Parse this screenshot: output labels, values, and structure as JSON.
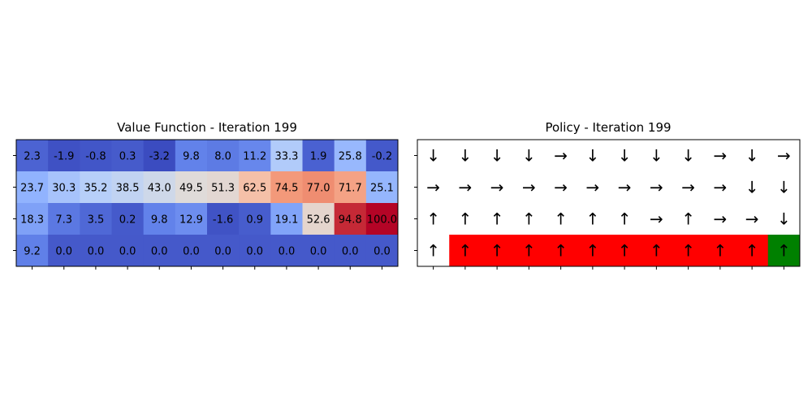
{
  "value_panel": {
    "title": "Value Function - Iteration 199"
  },
  "policy_panel": {
    "title": "Policy - Iteration 199"
  },
  "chart_data": [
    {
      "type": "heatmap",
      "title": "Value Function - Iteration 199",
      "colormap": "coolwarm",
      "rows": 4,
      "cols": 12,
      "values": [
        [
          2.3,
          -1.9,
          -0.8,
          0.3,
          -3.2,
          9.8,
          8.0,
          11.2,
          33.3,
          1.9,
          25.8,
          -0.2
        ],
        [
          23.7,
          30.3,
          35.2,
          38.5,
          43.0,
          49.5,
          51.3,
          62.5,
          74.5,
          77.0,
          71.7,
          25.1
        ],
        [
          18.3,
          7.3,
          3.5,
          0.2,
          9.8,
          12.9,
          -1.6,
          0.9,
          19.1,
          52.6,
          94.8,
          100.0
        ],
        [
          9.2,
          0.0,
          0.0,
          0.0,
          0.0,
          0.0,
          0.0,
          0.0,
          0.0,
          0.0,
          0.0,
          0.0
        ]
      ],
      "labels": [
        [
          "2.3",
          "-1.9",
          "-0.8",
          "0.3",
          "-3.2",
          "9.8",
          "8.0",
          "11.2",
          "33.3",
          "1.9",
          "25.8",
          "-0.2"
        ],
        [
          "23.7",
          "30.3",
          "35.2",
          "38.5",
          "43.0",
          "49.5",
          "51.3",
          "62.5",
          "74.5",
          "77.0",
          "71.7",
          "25.1"
        ],
        [
          "18.3",
          "7.3",
          "3.5",
          "0.2",
          "9.8",
          "12.9",
          "-1.6",
          "0.9",
          "19.1",
          "52.6",
          "94.8",
          "100.0"
        ],
        [
          "9.2",
          "0.0",
          "0.0",
          "0.0",
          "0.0",
          "0.0",
          "0.0",
          "0.0",
          "0.0",
          "0.0",
          "0.0",
          "0.0"
        ]
      ],
      "vmin": -3.2,
      "vmax": 100.0
    },
    {
      "type": "table",
      "title": "Policy - Iteration 199",
      "rows": 4,
      "cols": 12,
      "arrows": [
        [
          "↓",
          "↓",
          "↓",
          "↓",
          "→",
          "↓",
          "↓",
          "↓",
          "↓",
          "→",
          "↓",
          "→"
        ],
        [
          "→",
          "→",
          "→",
          "→",
          "→",
          "→",
          "→",
          "→",
          "→",
          "→",
          "↓",
          "↓"
        ],
        [
          "↑",
          "↑",
          "↑",
          "↑",
          "↑",
          "↑",
          "↑",
          "→",
          "↑",
          "→",
          "→",
          "↓"
        ],
        [
          "↑",
          "↑",
          "↑",
          "↑",
          "↑",
          "↑",
          "↑",
          "↑",
          "↑",
          "↑",
          "↑",
          "↑"
        ]
      ],
      "cell_colors": [
        [
          "#ffffff",
          "#ffffff",
          "#ffffff",
          "#ffffff",
          "#ffffff",
          "#ffffff",
          "#ffffff",
          "#ffffff",
          "#ffffff",
          "#ffffff",
          "#ffffff",
          "#ffffff"
        ],
        [
          "#ffffff",
          "#ffffff",
          "#ffffff",
          "#ffffff",
          "#ffffff",
          "#ffffff",
          "#ffffff",
          "#ffffff",
          "#ffffff",
          "#ffffff",
          "#ffffff",
          "#ffffff"
        ],
        [
          "#ffffff",
          "#ffffff",
          "#ffffff",
          "#ffffff",
          "#ffffff",
          "#ffffff",
          "#ffffff",
          "#ffffff",
          "#ffffff",
          "#ffffff",
          "#ffffff",
          "#ffffff"
        ],
        [
          "#ffffff",
          "#ff0000",
          "#ff0000",
          "#ff0000",
          "#ff0000",
          "#ff0000",
          "#ff0000",
          "#ff0000",
          "#ff0000",
          "#ff0000",
          "#ff0000",
          "#008000"
        ]
      ]
    }
  ]
}
